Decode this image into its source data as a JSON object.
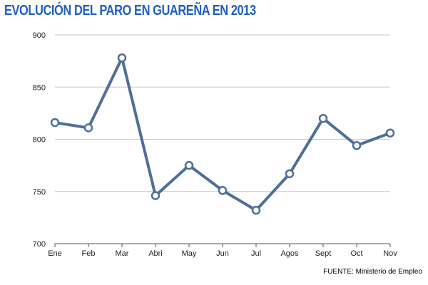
{
  "chart_data": {
    "type": "line",
    "title": "EVOLUCIÓN DEL PARO EN GUAREÑA EN 2013",
    "categories": [
      "Ene",
      "Feb",
      "Mar",
      "Abri",
      "May",
      "Jun",
      "Jul",
      "Agos",
      "Sept",
      "Oct",
      "Nov"
    ],
    "series": [
      {
        "values": [
          816,
          811,
          878,
          746,
          775,
          751,
          732,
          767,
          820,
          794,
          806
        ]
      }
    ],
    "yticks": [
      700,
      750,
      800,
      850,
      900
    ],
    "ylim": [
      700,
      900
    ],
    "grid": true,
    "source": "FUENTE: Ministerio de Empleo",
    "colors": {
      "line": "#4f6f9a",
      "marker_fill": "#ffffff",
      "grid": "#c8c8c8",
      "title": "#1f5fc4"
    }
  }
}
